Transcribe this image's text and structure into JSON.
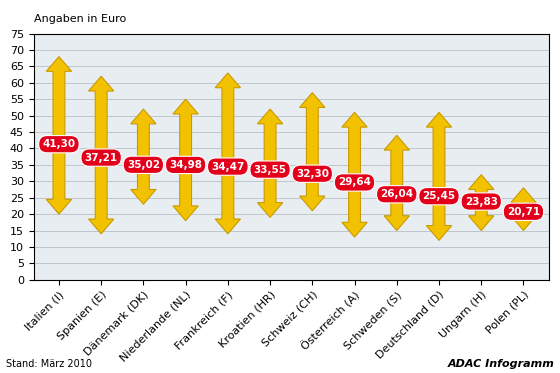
{
  "chart_data": {
    "type": "range",
    "y_label": "Angaben in Euro",
    "footnote": "Stand: März 2010",
    "source": "ADAC Infogramm",
    "categories": [
      "Italien (I)",
      "Spanien (E)",
      "Dänemark (DK)",
      "Niederlande (NL)",
      "Frankreich (F)",
      "Kroatien (HR)",
      "Schweiz (CH)",
      "Österreich (A)",
      "Schweden (S)",
      "Deutschland (D)",
      "Ungarn (H)",
      "Polen (PL)"
    ],
    "values": [
      41.3,
      37.21,
      35.02,
      34.98,
      34.47,
      33.55,
      32.3,
      29.64,
      26.04,
      25.45,
      23.83,
      20.71
    ],
    "value_labels": [
      "41,30",
      "37,21",
      "35,02",
      "34,98",
      "34,47",
      "33,55",
      "32,30",
      "29,64",
      "26,04",
      "25,45",
      "23,83",
      "20,71"
    ],
    "min": [
      20,
      14,
      23,
      18,
      14,
      19,
      21,
      13,
      15,
      12,
      15,
      15
    ],
    "max": [
      68,
      62,
      52,
      55,
      63,
      52,
      57,
      51,
      44,
      51,
      32,
      28
    ],
    "color": "#f2c200",
    "label_color": "#e2001a",
    "ylim": [
      0,
      75
    ],
    "yticks": [
      0,
      5,
      10,
      15,
      20,
      25,
      30,
      35,
      40,
      45,
      50,
      55,
      60,
      65,
      70,
      75
    ],
    "grid": true,
    "data_labels": true
  }
}
